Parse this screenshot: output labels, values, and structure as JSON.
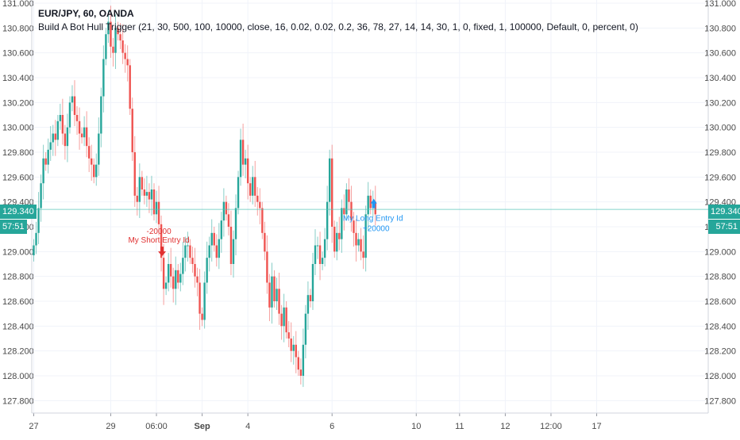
{
  "header": {
    "symbol": "EUR/JPY, 60, OANDA",
    "study": "Build A Bot Hull Trigger (21, 30, 500, 100, 10000, close, 16, 0.02, 0.02, 0.2, 36, 78, 27, 14, 14, 30, 1, 0, fixed, 1, 100000, Default, 0, percent, 0)"
  },
  "price_tag": {
    "price": "129.340",
    "countdown": "57:51"
  },
  "colors": {
    "up": "#26a69a",
    "down": "#ef5350",
    "grid": "#f0f3fa",
    "axis_text": "#4a4a4a",
    "short_label": "#e03030",
    "long_label": "#2196f3",
    "price_line": "#4fc3b5"
  },
  "chart_data": {
    "type": "candlestick",
    "symbol": "EUR/JPY",
    "interval": "60",
    "ylim": [
      127.7,
      131.0
    ],
    "y_ticks": [
      127.8,
      128.0,
      128.2,
      128.4,
      128.6,
      128.8,
      129.0,
      129.2,
      129.4,
      129.6,
      129.8,
      130.0,
      130.2,
      130.4,
      130.6,
      130.8,
      131.0
    ],
    "y_tick_labels": [
      "127.800",
      "128.000",
      "128.200",
      "128.400",
      "128.600",
      "128.800",
      "129.000",
      "129.200",
      "129.400",
      "129.600",
      "129.800",
      "130.000",
      "130.200",
      "130.400",
      "130.600",
      "130.800",
      "131.000"
    ],
    "x_labels": [
      {
        "label": "27",
        "bar": 0
      },
      {
        "label": "29",
        "bar": 32
      },
      {
        "label": "06:00",
        "bar": 51
      },
      {
        "label": "Sep",
        "bar": 70,
        "bold": true
      },
      {
        "label": "4",
        "bar": 89
      },
      {
        "label": "6",
        "bar": 124
      },
      {
        "label": "10",
        "bar": 159
      },
      {
        "label": "11",
        "bar": 177
      },
      {
        "label": "12",
        "bar": 196
      },
      {
        "label": "12:00",
        "bar": 215
      },
      {
        "label": "17",
        "bar": 234
      }
    ],
    "grid": true,
    "current_price": 129.34,
    "close": [
      129.05,
      129.15,
      129.35,
      129.55,
      129.75,
      129.7,
      129.82,
      129.88,
      129.95,
      129.9,
      130.05,
      130.1,
      129.95,
      129.85,
      130.0,
      130.2,
      130.25,
      130.1,
      130.05,
      129.95,
      129.92,
      130.0,
      129.85,
      129.75,
      129.7,
      129.6,
      129.7,
      129.95,
      130.25,
      130.55,
      130.75,
      130.85,
      130.65,
      130.6,
      130.8,
      130.75,
      130.7,
      130.6,
      130.55,
      130.5,
      130.15,
      129.8,
      129.45,
      129.4,
      129.6,
      129.5,
      129.45,
      129.48,
      129.42,
      129.5,
      129.3,
      129.4,
      129.22,
      128.95,
      128.7,
      128.75,
      128.9,
      128.8,
      128.7,
      128.85,
      128.75,
      128.82,
      128.95,
      129.05,
      129.05,
      128.95,
      128.9,
      128.8,
      128.75,
      128.5,
      128.45,
      128.75,
      128.95,
      129.05,
      129.15,
      129.05,
      128.95,
      129.1,
      129.25,
      129.4,
      129.3,
      129.2,
      128.9,
      129.1,
      129.35,
      129.6,
      129.9,
      129.7,
      129.75,
      129.55,
      129.45,
      129.6,
      129.45,
      129.4,
      129.35,
      129.15,
      129.0,
      128.75,
      128.55,
      128.8,
      128.6,
      128.7,
      128.5,
      128.4,
      128.55,
      128.35,
      128.3,
      128.2,
      128.25,
      128.15,
      128.05,
      128.0,
      128.25,
      128.5,
      128.65,
      128.6,
      128.9,
      129.05,
      129.05,
      128.9,
      128.95,
      129.1,
      129.4,
      129.75,
      129.2,
      129.0,
      129.15,
      129.1,
      129.35,
      129.3,
      129.5,
      129.4,
      129.25,
      129.15,
      129.05,
      129.1,
      129.0,
      128.95,
      129.3,
      129.45,
      129.35,
      129.4,
      129.3
    ]
  },
  "markers": {
    "short": {
      "label": "My Short Entry Id",
      "qty": "-20000",
      "bar": 53
    },
    "long": {
      "label": "My Long Entry Id",
      "qty": "+20000",
      "bar": 141
    }
  }
}
